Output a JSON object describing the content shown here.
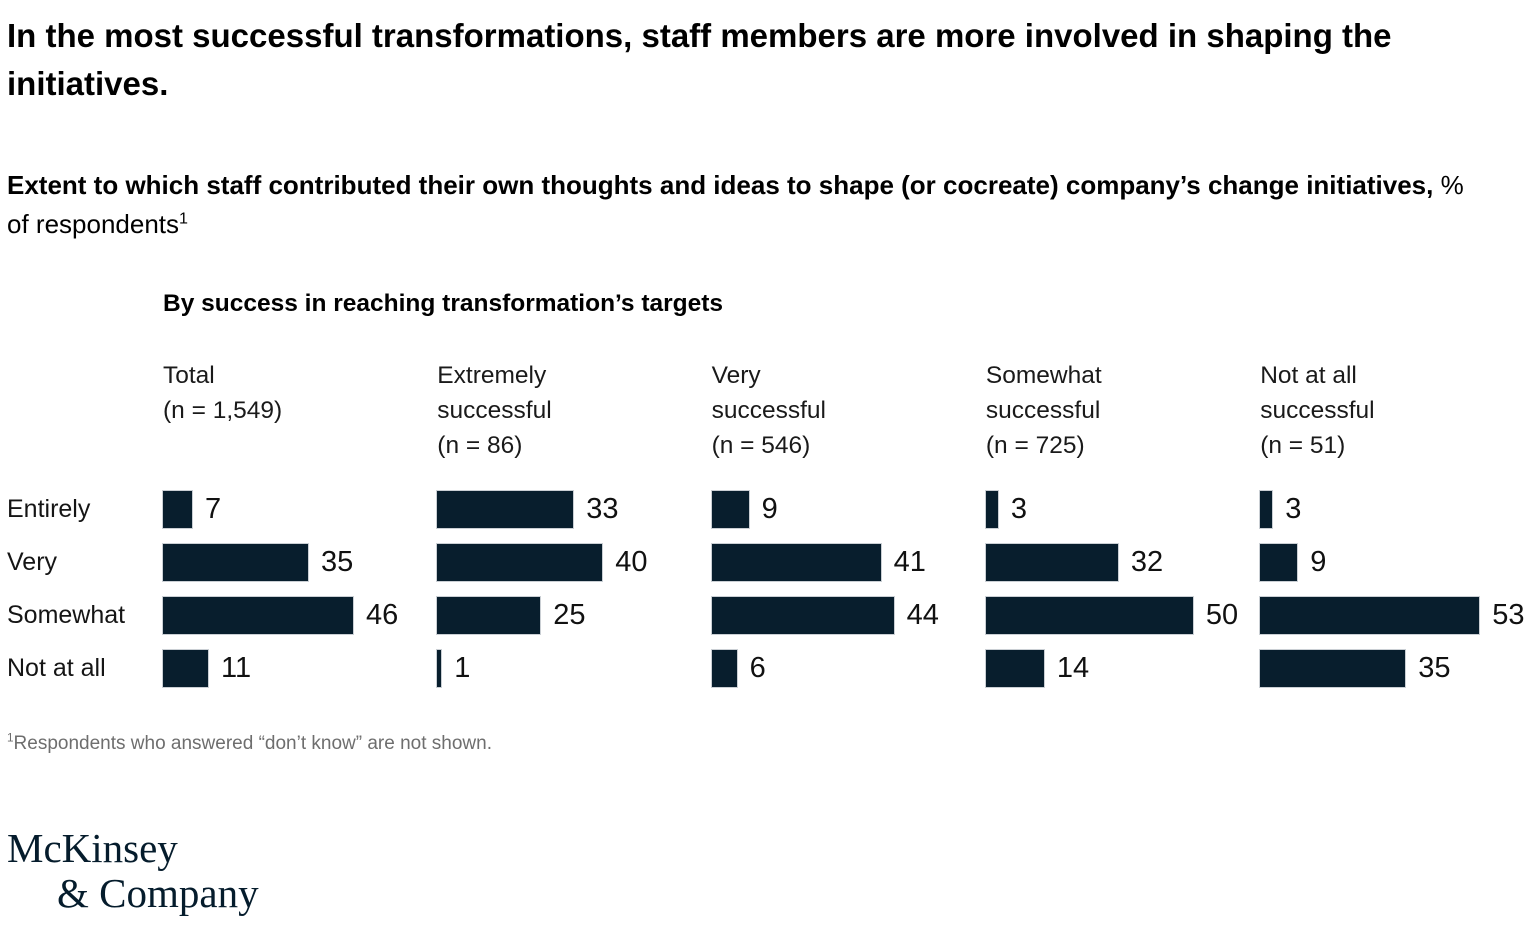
{
  "page": {
    "title": "In the most successful transformations, staff members are more involved in shaping the initiatives.",
    "subtitle": {
      "bold": "Extent to which staff contributed their own thoughts and ideas to shape (or cocreate) company’s change initiatives,",
      "regular": "% of respondents",
      "superscript": "1"
    },
    "footnote": {
      "superscript": "1",
      "text": "Respondents who answered “don’t know” are not shown."
    },
    "logo": {
      "line1": "McKinsey",
      "line2": "& Company"
    }
  },
  "chart_data": {
    "type": "bar",
    "orientation": "horizontal",
    "title": "By success in reaching transformation’s targets",
    "value_unit": "% of respondents",
    "xlim": [
      0,
      53
    ],
    "grid": false,
    "legend": "none",
    "bar_color": "#081e2d",
    "categories": [
      "Entirely",
      "Very",
      "Somewhat",
      "Not at all"
    ],
    "series": [
      {
        "name": "Total",
        "n_label": "(n = 1,549)",
        "values": [
          7,
          35,
          46,
          11
        ]
      },
      {
        "name": "Extremely successful",
        "n_label": "(n = 86)",
        "values": [
          33,
          40,
          25,
          1
        ]
      },
      {
        "name": "Very successful",
        "n_label": "(n = 546)",
        "values": [
          9,
          41,
          44,
          6
        ]
      },
      {
        "name": "Somewhat successful",
        "n_label": "(n = 725)",
        "values": [
          3,
          32,
          50,
          14
        ]
      },
      {
        "name": "Not at all successful",
        "n_label": "(n = 51)",
        "values": [
          3,
          9,
          53,
          35
        ]
      }
    ]
  }
}
